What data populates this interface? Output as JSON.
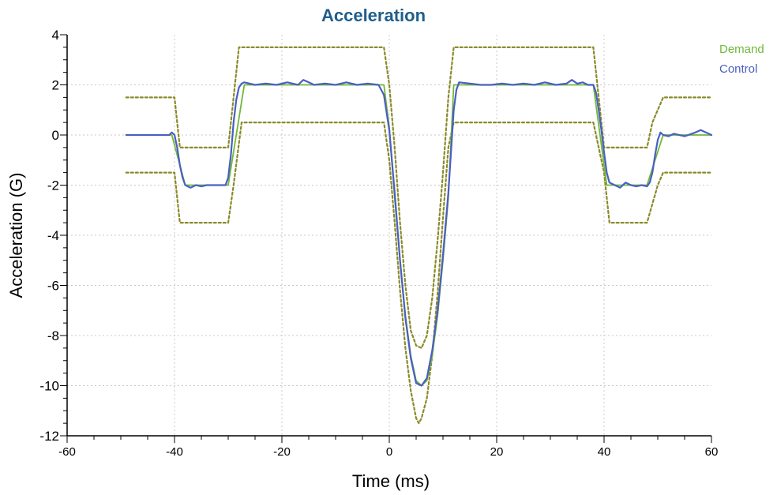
{
  "chart_data": {
    "type": "line",
    "title": "Acceleration",
    "xlabel": "Time (ms)",
    "ylabel": "Acceleration (G)",
    "xlim": [
      -60,
      60
    ],
    "ylim": [
      -12,
      4
    ],
    "xticks": [
      "-60",
      "-40",
      "-20",
      "0",
      "20",
      "40",
      "60"
    ],
    "yticks": [
      "4",
      "2",
      "0",
      "-2",
      "-4",
      "-6",
      "-8",
      "-10",
      "-12"
    ],
    "grid": true,
    "legend_position": "top-right",
    "colors": {
      "title": "#1f5e8c",
      "demand": "#6fb83a",
      "control": "#4a5fc0",
      "tolerance": "#8a8a2a",
      "grid": "#c8c8c8"
    },
    "legend": [
      "Demand",
      "Control"
    ],
    "series": [
      {
        "name": "Demand",
        "style": "solid",
        "x": [
          -49,
          -40.5,
          -38,
          -30,
          -27,
          -1,
          0,
          1,
          2,
          3,
          4,
          5,
          6,
          7,
          8,
          9,
          10,
          11,
          12,
          38,
          40.5,
          48,
          51,
          60
        ],
        "y": [
          0,
          0,
          -2,
          -2,
          2,
          2,
          0.3,
          -2.5,
          -5,
          -7.2,
          -8.8,
          -9.8,
          -10,
          -9.8,
          -8.8,
          -7.2,
          -5,
          -2.5,
          2,
          2,
          -2,
          -2,
          0,
          0
        ]
      },
      {
        "name": "Control",
        "style": "solid",
        "x": [
          -49,
          -41,
          -40.5,
          -40,
          -39.5,
          -39,
          -38.5,
          -38,
          -37,
          -36,
          -35,
          -34,
          -32,
          -30.5,
          -30,
          -29.5,
          -29,
          -28.5,
          -28,
          -27.5,
          -27,
          -25,
          -23,
          -21,
          -19,
          -17,
          -16,
          -15,
          -14,
          -12,
          -10,
          -8,
          -6,
          -4,
          -2,
          -1,
          0,
          1,
          2,
          3,
          4,
          5,
          6,
          7,
          8,
          9,
          10,
          11,
          12,
          12.5,
          13,
          15,
          17,
          19,
          21,
          23,
          25,
          27,
          29,
          31,
          33,
          34,
          35,
          36,
          37,
          38,
          38.5,
          39,
          39.5,
          40,
          40.5,
          41,
          42,
          43,
          44,
          45,
          46,
          47,
          48,
          48.5,
          49,
          49.5,
          50,
          50.5,
          51,
          52,
          53,
          55,
          57,
          58,
          60
        ],
        "y": [
          0,
          0,
          0.1,
          0,
          -0.5,
          -1.2,
          -1.7,
          -2.0,
          -2.1,
          -2.0,
          -2.05,
          -2.0,
          -2.0,
          -2.0,
          -1.7,
          -0.8,
          0.5,
          1.4,
          1.9,
          2.05,
          2.1,
          2.0,
          2.05,
          2.0,
          2.1,
          2.0,
          2.2,
          2.1,
          2.0,
          2.05,
          2.0,
          2.1,
          2.0,
          2.05,
          2.0,
          1.6,
          0.2,
          -2.3,
          -5.0,
          -7.3,
          -8.9,
          -9.9,
          -10.0,
          -9.7,
          -8.6,
          -7.0,
          -4.8,
          -2.3,
          1.0,
          1.8,
          2.1,
          2.05,
          2.0,
          2.0,
          2.05,
          2.0,
          2.05,
          2.0,
          2.1,
          2.0,
          2.05,
          2.2,
          2.05,
          2.1,
          2.0,
          2.0,
          1.7,
          1.0,
          0.2,
          -0.7,
          -1.5,
          -1.9,
          -2.0,
          -2.1,
          -1.9,
          -2.0,
          -2.05,
          -2.0,
          -2.05,
          -1.9,
          -1.5,
          -0.8,
          -0.2,
          0.1,
          0.0,
          -0.05,
          0.05,
          -0.05,
          0.1,
          0.2,
          0.0
        ]
      },
      {
        "name": "",
        "style": "dotted",
        "x": [
          -49,
          -40,
          -39,
          -30,
          -29,
          -28,
          -1,
          0,
          1,
          2,
          3,
          4,
          5,
          6,
          7,
          8,
          9,
          10,
          11,
          12,
          38,
          39,
          40,
          48,
          49,
          51,
          60
        ],
        "y": [
          1.5,
          1.5,
          -0.5,
          -0.5,
          1.5,
          3.5,
          3.5,
          2.0,
          -0.5,
          -3.5,
          -6.0,
          -7.8,
          -8.4,
          -8.5,
          -8.0,
          -6.5,
          -4.2,
          -1.5,
          1.5,
          3.5,
          3.5,
          1.5,
          -0.5,
          -0.5,
          0.5,
          1.5,
          1.5
        ]
      },
      {
        "name": "",
        "style": "dotted",
        "x": [
          -49,
          -40,
          -39,
          -30,
          -29,
          -27.5,
          -1,
          0,
          1,
          2,
          3,
          4,
          5,
          5.5,
          6,
          7,
          8,
          9,
          10,
          11,
          12,
          38,
          40,
          41,
          48,
          50,
          51,
          60
        ],
        "y": [
          -1.5,
          -1.5,
          -3.5,
          -3.5,
          -2.0,
          0.5,
          0.5,
          -1.0,
          -3.5,
          -6.2,
          -8.5,
          -10.2,
          -11.3,
          -11.5,
          -11.3,
          -10.5,
          -8.8,
          -6.3,
          -3.3,
          -0.5,
          0.5,
          0.5,
          -1.5,
          -3.5,
          -3.5,
          -2.0,
          -1.5,
          -1.5
        ]
      }
    ]
  }
}
